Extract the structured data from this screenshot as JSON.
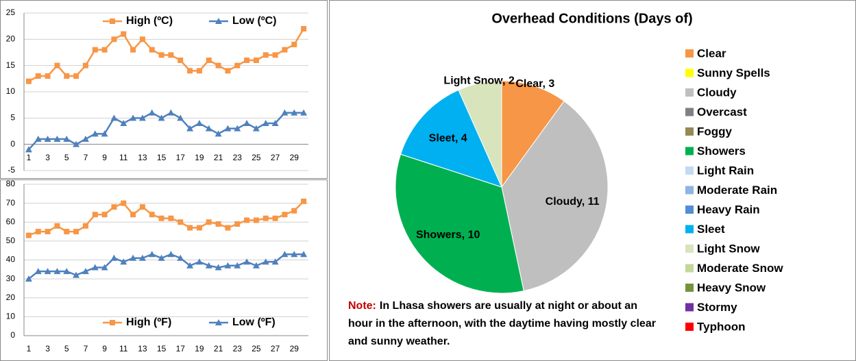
{
  "chart_data": [
    {
      "type": "line",
      "categories": [
        1,
        null,
        3,
        null,
        5,
        null,
        7,
        null,
        9,
        null,
        11,
        null,
        13,
        null,
        15,
        null,
        17,
        null,
        19,
        null,
        21,
        null,
        23,
        null,
        25,
        null,
        27,
        null,
        29,
        null
      ],
      "series": [
        {
          "name": "High (ºC)",
          "color": "#f79646",
          "marker": "square",
          "values": [
            12,
            13,
            13,
            15,
            13,
            13,
            15,
            18,
            18,
            20,
            21,
            18,
            20,
            18,
            17,
            17,
            16,
            14,
            14,
            16,
            15,
            14,
            15,
            16,
            16,
            17,
            17,
            18,
            19,
            22
          ]
        },
        {
          "name": "Low (ºC)",
          "color": "#4f81bd",
          "marker": "triangle",
          "values": [
            -1,
            1,
            1,
            1,
            1,
            0,
            1,
            2,
            2,
            5,
            4,
            5,
            5,
            6,
            5,
            6,
            5,
            3,
            4,
            3,
            2,
            3,
            3,
            4,
            3,
            4,
            4,
            6,
            6,
            6
          ]
        }
      ],
      "ylim": [
        -5,
        25
      ],
      "yticks": [
        -5,
        0,
        5,
        10,
        15,
        20,
        25
      ],
      "grid": true,
      "legend": "top"
    },
    {
      "type": "line",
      "categories": [
        1,
        null,
        3,
        null,
        5,
        null,
        7,
        null,
        9,
        null,
        11,
        null,
        13,
        null,
        15,
        null,
        17,
        null,
        19,
        null,
        21,
        null,
        23,
        null,
        25,
        null,
        27,
        null,
        29,
        null
      ],
      "series": [
        {
          "name": "High (ºF)",
          "color": "#f79646",
          "marker": "square",
          "values": [
            53,
            55,
            55,
            58,
            55,
            55,
            58,
            64,
            64,
            68,
            70,
            64,
            68,
            64,
            62,
            62,
            60,
            57,
            57,
            60,
            59,
            57,
            59,
            61,
            61,
            62,
            62,
            64,
            66,
            71
          ]
        },
        {
          "name": "Low (ºF)",
          "color": "#4f81bd",
          "marker": "triangle",
          "values": [
            30,
            34,
            34,
            34,
            34,
            32,
            34,
            36,
            36,
            41,
            39,
            41,
            41,
            43,
            41,
            43,
            41,
            37,
            39,
            37,
            36,
            37,
            37,
            39,
            37,
            39,
            39,
            43,
            43,
            43
          ]
        }
      ],
      "ylim": [
        0,
        80
      ],
      "yticks": [
        0,
        10,
        20,
        30,
        40,
        50,
        60,
        70,
        80
      ],
      "grid": true,
      "legend": "bottom"
    },
    {
      "type": "pie",
      "title": "Overhead Conditions (Days of)",
      "categories": [
        "Clear",
        "Sunny Spells",
        "Cloudy",
        "Overcast",
        "Foggy",
        "Showers",
        "Light Rain",
        "Moderate Rain",
        "Heavy Rain",
        "Sleet",
        "Light Snow",
        "Moderate Snow",
        "Heavy Snow",
        "Stormy",
        "Typhoon"
      ],
      "values": [
        3,
        0,
        11,
        0,
        0,
        10,
        0,
        0,
        0,
        4,
        2,
        0,
        0,
        0,
        0
      ],
      "value_labels": [
        "Clear, 3",
        null,
        "Cloudy, 11",
        null,
        null,
        "Showers, 10",
        null,
        null,
        null,
        "Sleet, 4",
        "Light Snow, 2",
        null,
        null,
        null,
        null
      ],
      "colors": [
        "#f79646",
        "#ffff00",
        "#bfbfbf",
        "#808080",
        "#948a54",
        "#00b050",
        "#c5d9f1",
        "#8db4e2",
        "#538dd5",
        "#00b0f0",
        "#d8e4bc",
        "#c4d79b",
        "#76933c",
        "#7030a0",
        "#ff0000"
      ],
      "note_label": "Note:",
      "note": "In Lhasa showers are usually at night or about an hour in the afternoon, with the daytime having mostly clear and sunny weather."
    }
  ]
}
